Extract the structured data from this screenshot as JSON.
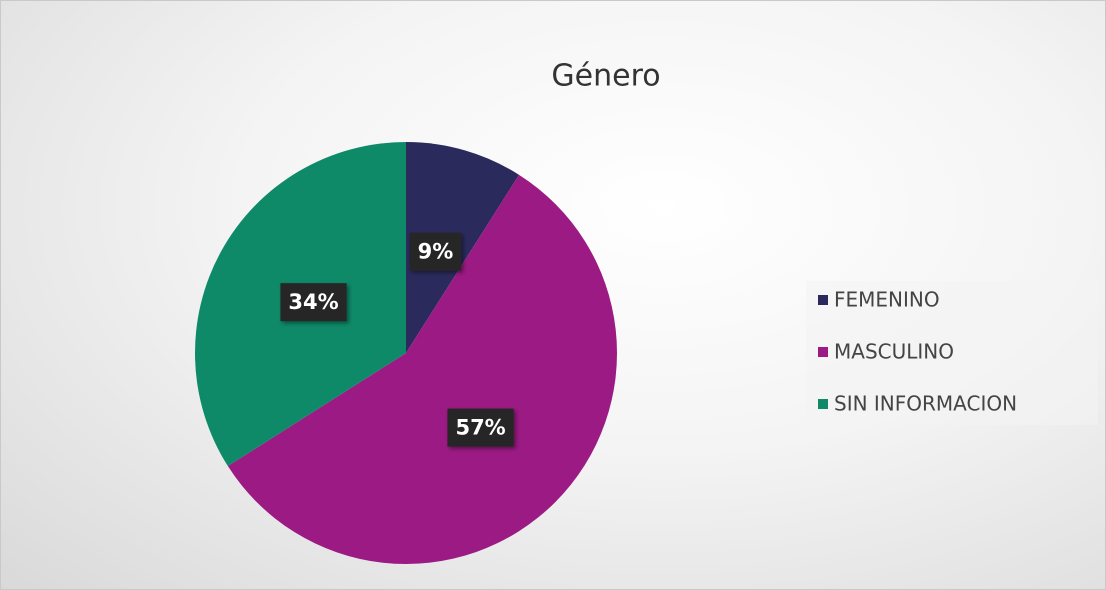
{
  "chart_data": {
    "type": "pie",
    "title": "Género",
    "categories": [
      "FEMENINO",
      "MASCULINO",
      "SIN INFORMACION"
    ],
    "values": [
      9,
      57,
      34
    ],
    "value_labels": [
      "9%",
      "57%",
      "34%"
    ],
    "colors": [
      "#2b2a5c",
      "#9c1a84",
      "#0e8a68"
    ],
    "legend": "right"
  }
}
